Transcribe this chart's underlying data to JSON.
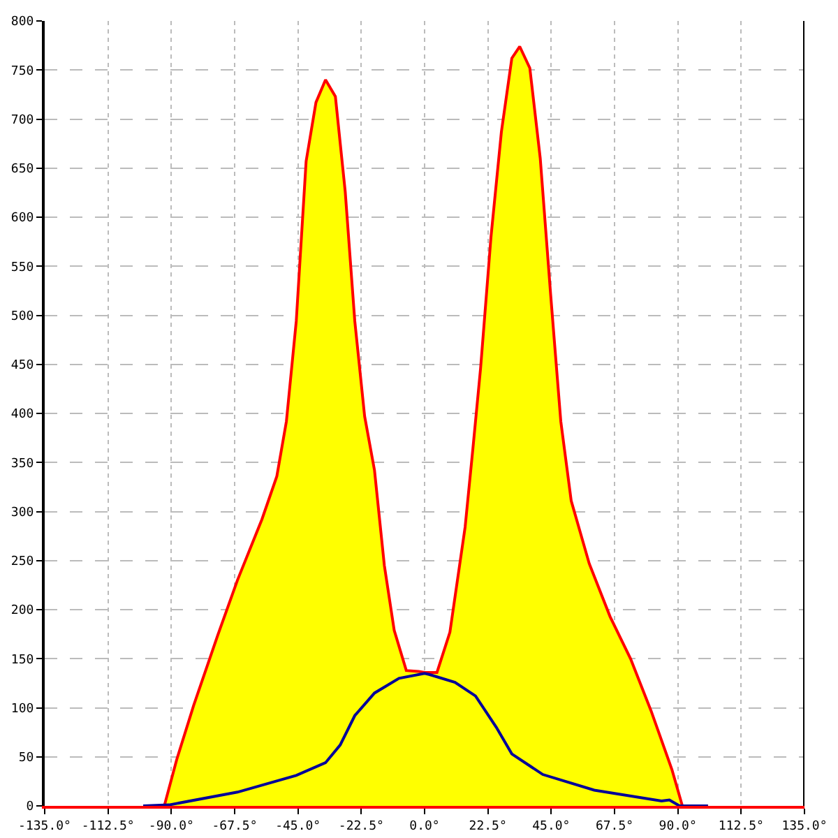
{
  "chart_data": {
    "type": "area",
    "series": [
      {
        "color": "#ffff00",
        "x": [
          -100,
          -92.5,
          -88.1,
          -82.1,
          -73.5,
          -66.5,
          -57.8,
          -52.5,
          -49.1,
          -45.6,
          -42.1,
          -38.6,
          -35.2,
          -31.7,
          -28.2,
          -24.8,
          -21.3,
          -17.8,
          -14.3,
          -10.8,
          -6.5,
          -2.1,
          0,
          4.4,
          9,
          14.4,
          17.2,
          19.9,
          23.6,
          27.3,
          31,
          33.8,
          37.4,
          41.1,
          44.8,
          48.4,
          52.1,
          58.5,
          65.9,
          73.2,
          80.6,
          87.9,
          91.6,
          100.7
        ],
        "values": [
          0,
          0,
          47,
          102,
          174,
          230,
          292,
          336,
          392,
          494,
          657,
          717,
          740,
          723,
          626,
          494,
          397,
          342,
          245,
          179,
          138,
          137,
          136,
          136,
          177,
          284,
          365,
          446,
          580,
          687,
          762,
          774,
          752,
          660,
          521,
          392,
          311,
          247,
          193,
          150,
          96,
          37,
          0,
          0
        ]
      },
      {
        "type": "line",
        "color": "#000099",
        "x": [
          -100,
          -90.8,
          -66.5,
          -45.6,
          -35.2,
          -30,
          -24.8,
          -17.8,
          -9.1,
          0,
          1.6,
          10.8,
          18.1,
          25.5,
          31,
          42,
          60.3,
          84.2,
          87,
          90.6,
          100.7
        ],
        "values": [
          0,
          1,
          14,
          31,
          44,
          62,
          92,
          115,
          130,
          135,
          134,
          126,
          112,
          80,
          53,
          32,
          16,
          5,
          6,
          0,
          0
        ]
      }
    ],
    "xlim": [
      -135,
      135
    ],
    "xticks": [
      {
        "value": -135,
        "label": "-135.0°"
      },
      {
        "value": -112.5,
        "label": "-112.5°"
      },
      {
        "value": -90,
        "label": "-90.0°"
      },
      {
        "value": -67.5,
        "label": "-67.5°"
      },
      {
        "value": -45,
        "label": "-45.0°"
      },
      {
        "value": -22.5,
        "label": "-22.5°"
      },
      {
        "value": 0,
        "label": "0.0°"
      },
      {
        "value": 22.5,
        "label": "22.5°"
      },
      {
        "value": 45,
        "label": "45.0°"
      },
      {
        "value": 67.5,
        "label": "67.5°"
      },
      {
        "value": 90,
        "label": "90.0°"
      },
      {
        "value": 112.5,
        "label": "112.5°"
      },
      {
        "value": 135,
        "label": "135.0°"
      }
    ],
    "ylim": [
      0,
      800
    ],
    "yticks": [
      0,
      50,
      100,
      150,
      200,
      250,
      300,
      350,
      400,
      450,
      500,
      550,
      600,
      650,
      700,
      750,
      800
    ],
    "grid": true,
    "marker": "none",
    "line_style": "solid"
  }
}
